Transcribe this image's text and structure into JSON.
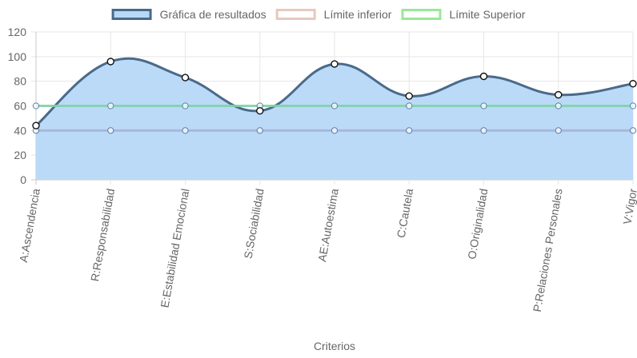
{
  "chart_data": {
    "type": "line",
    "categories": [
      "A:Ascendencia",
      "R:Responsabilidad",
      "E:Estabilidad Emocional",
      "S:Sociabilidad",
      "AE:Autoestima",
      "C:Cautela",
      "O:Originalidad",
      "P:Relaciones Personales",
      "V:Vigor"
    ],
    "series": [
      {
        "name": "Gráfica de resultados",
        "values": [
          44,
          96,
          83,
          56,
          94,
          68,
          84,
          69,
          78
        ],
        "border_color": "#4a6a8a",
        "fill_color": "#b7d8f7",
        "filled": true
      },
      {
        "name": "Límite inferior",
        "values": [
          40,
          40,
          40,
          40,
          40,
          40,
          40,
          40,
          40
        ],
        "border_color": "#e6c9bf",
        "line_color": "#a9b3d6",
        "filled": false
      },
      {
        "name": "Límite Superior",
        "values": [
          60,
          60,
          60,
          60,
          60,
          60,
          60,
          60,
          60
        ],
        "border_color": "#98e898",
        "line_color": "#7fd0a8",
        "filled": false
      }
    ],
    "xlabel": "Criterios",
    "ylabel": "",
    "ylim": [
      0,
      120
    ],
    "yticks": [
      0,
      20,
      40,
      60,
      80,
      100,
      120
    ],
    "grid": true,
    "legend_position": "top"
  }
}
